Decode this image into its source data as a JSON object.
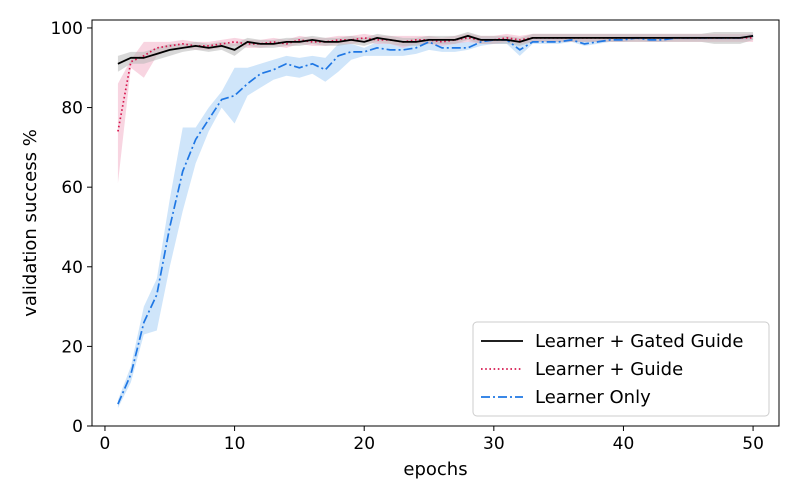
{
  "chart_data": {
    "type": "line",
    "title": "",
    "xlabel": "epochs",
    "ylabel": "validation success %",
    "xlim": [
      -1,
      52
    ],
    "ylim": [
      0,
      102
    ],
    "xticks": [
      0,
      10,
      20,
      30,
      40,
      50
    ],
    "yticks": [
      0,
      20,
      40,
      60,
      80,
      100
    ],
    "grid": false,
    "legend_position": "lower-right",
    "x": [
      1,
      2,
      3,
      4,
      5,
      6,
      7,
      8,
      9,
      10,
      11,
      12,
      13,
      14,
      15,
      16,
      17,
      18,
      19,
      20,
      21,
      22,
      23,
      24,
      25,
      26,
      27,
      28,
      29,
      30,
      31,
      32,
      33,
      34,
      35,
      36,
      37,
      38,
      39,
      40,
      41,
      42,
      43,
      44,
      45,
      46,
      47,
      48,
      49,
      50
    ],
    "series": [
      {
        "name": "Learner Only",
        "color": "#1f77e4",
        "band_color": "#a8cff5",
        "linestyle": "dashdot",
        "values": [
          5.5,
          13,
          26,
          33,
          50,
          64,
          72,
          77,
          82,
          83,
          86,
          88.5,
          89.5,
          91,
          90,
          91,
          89.5,
          93,
          94,
          94,
          95,
          94.5,
          94.5,
          95,
          96.5,
          95,
          95,
          95,
          96.5,
          97,
          97,
          94.5,
          96.5,
          96.5,
          96.5,
          97,
          96,
          96.5,
          97,
          97,
          97.5,
          97,
          97,
          97.5,
          97.5,
          97.5,
          97.5,
          97.5,
          97.5,
          98
        ],
        "lower": [
          4.5,
          11,
          23,
          24,
          40,
          54,
          66,
          74,
          80,
          76,
          83,
          85,
          87,
          88,
          87.5,
          88.5,
          86.5,
          89,
          92,
          93,
          93,
          93,
          93,
          93.5,
          94.5,
          94,
          94,
          94.5,
          95.5,
          96,
          96,
          93,
          96,
          96,
          96,
          96.5,
          95.5,
          96,
          96.5,
          96.5,
          97,
          96.5,
          96.5,
          97,
          97,
          97,
          97,
          97,
          97,
          97
        ],
        "upper": [
          6.5,
          15,
          30,
          37,
          57,
          75,
          75,
          80,
          84,
          90,
          90,
          91,
          92,
          93,
          92.5,
          93,
          92.5,
          96,
          96,
          95,
          96.5,
          96,
          96,
          96.5,
          97.5,
          96.5,
          96.5,
          96.5,
          97.5,
          97.5,
          97.5,
          96,
          97.5,
          97.5,
          97.5,
          97.5,
          97,
          97,
          97.5,
          97.5,
          98,
          97.5,
          97.5,
          98,
          98,
          98,
          98,
          98,
          98,
          98.5
        ]
      },
      {
        "name": "Learner + Guide",
        "color": "#d6184f",
        "band_color": "#f3b3c8",
        "linestyle": "dotted",
        "values": [
          74,
          91.5,
          93,
          95,
          95.5,
          96,
          95.5,
          95.5,
          96,
          96.5,
          96,
          96,
          96.5,
          96,
          97,
          96.5,
          96.5,
          97,
          97,
          97.5,
          97,
          97,
          96.5,
          97,
          97,
          96.5,
          97,
          97.5,
          97,
          97,
          97.5,
          97,
          97.5,
          97.5,
          97.5,
          97.5,
          97.5,
          97.5,
          97.5,
          97.5,
          97.5,
          97.5,
          97.5,
          97.5,
          97.5,
          97.5,
          97.5,
          97.5,
          97.5,
          97.5
        ],
        "lower": [
          61,
          90,
          87.5,
          93,
          94.5,
          95,
          94.5,
          94.5,
          95,
          95.5,
          95,
          95,
          95.5,
          95,
          96,
          95.5,
          95.5,
          96,
          96,
          96.5,
          96,
          96,
          95,
          96,
          96,
          95.5,
          96,
          96.5,
          96,
          96,
          96.5,
          96,
          96.5,
          96.5,
          96.5,
          96.5,
          96.5,
          96.5,
          96.5,
          96.5,
          96.5,
          96.5,
          96.5,
          96.5,
          96.5,
          96.5,
          96.5,
          96.5,
          96.5,
          96.5
        ],
        "upper": [
          86,
          92,
          96.5,
          96.5,
          96.5,
          97,
          96.5,
          96.5,
          97,
          97.5,
          97,
          97,
          97.5,
          97,
          98,
          97.5,
          97.5,
          98,
          98,
          98.5,
          98,
          98,
          98,
          98,
          98,
          97.5,
          98,
          98.5,
          98,
          98,
          98.5,
          98,
          98.5,
          98.5,
          98.5,
          98.5,
          98.5,
          98.5,
          98.5,
          98.5,
          98.5,
          98.5,
          98.5,
          98.5,
          98.5,
          98.5,
          98.5,
          98.5,
          98.5,
          98.5
        ]
      },
      {
        "name": "Learner + Gated Guide",
        "color": "#000000",
        "band_color": "#b8b8b8",
        "linestyle": "solid",
        "values": [
          91,
          92.5,
          92.5,
          93.5,
          94.5,
          95,
          95.5,
          95,
          95.5,
          94.5,
          96.5,
          96,
          96,
          96.5,
          96.5,
          97,
          96.5,
          96.5,
          97,
          96.5,
          97.5,
          97,
          96.5,
          96.5,
          97,
          97,
          97,
          98,
          97,
          97,
          97,
          96.5,
          97.5,
          97.5,
          97.5,
          97.5,
          97.5,
          97.5,
          97.5,
          97.5,
          97.5,
          97.5,
          97.5,
          97.5,
          97.5,
          97.5,
          97.5,
          97.5,
          97.5,
          98
        ],
        "lower": [
          89,
          91,
          91,
          92,
          93,
          94,
          94.5,
          94,
          94.5,
          93,
          95.5,
          95,
          95,
          95.5,
          95.5,
          96,
          95.5,
          95.5,
          96,
          95.5,
          96.5,
          96,
          95.5,
          95.5,
          96,
          96,
          96,
          97,
          96,
          96,
          96,
          95.5,
          96.5,
          96.5,
          96.5,
          96.5,
          96.5,
          96.5,
          96.5,
          96.5,
          96.5,
          96.5,
          96.5,
          96.5,
          96.5,
          96.5,
          96,
          96,
          96,
          97
        ],
        "upper": [
          93,
          94,
          94,
          95,
          96,
          96,
          96.5,
          96,
          96.5,
          96,
          97.5,
          97,
          97,
          97.5,
          97.5,
          98,
          97.5,
          97.5,
          98,
          97.5,
          98.5,
          98,
          97.5,
          97.5,
          98,
          98,
          98,
          99,
          98,
          98,
          98,
          97.5,
          98.5,
          98.5,
          98.5,
          98.5,
          98.5,
          98.5,
          98.5,
          98.5,
          98.5,
          98.5,
          98.5,
          98.5,
          98.5,
          98.5,
          99,
          99,
          99,
          99
        ]
      }
    ],
    "legend_order": [
      "Learner + Gated Guide",
      "Learner + Guide",
      "Learner Only"
    ]
  }
}
